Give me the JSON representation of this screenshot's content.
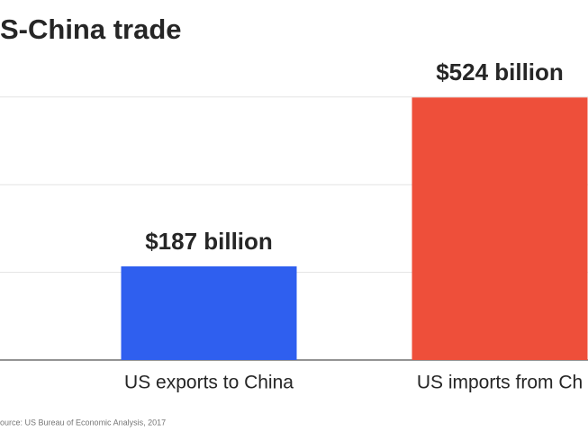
{
  "chart_data": {
    "type": "bar",
    "title": "S-China trade",
    "source": "ource: US Bureau of Economic Analysis, 2017",
    "categories": [
      "US exports to China",
      "US imports from Ch"
    ],
    "values": [
      187,
      524
    ],
    "value_labels": [
      "$187 billion",
      "$524 billion"
    ],
    "colors": [
      "#2f5fef",
      "#ee4f3a"
    ],
    "ylim": [
      0,
      530
    ],
    "yticks": [
      0,
      175,
      350,
      525
    ],
    "grid": true
  }
}
